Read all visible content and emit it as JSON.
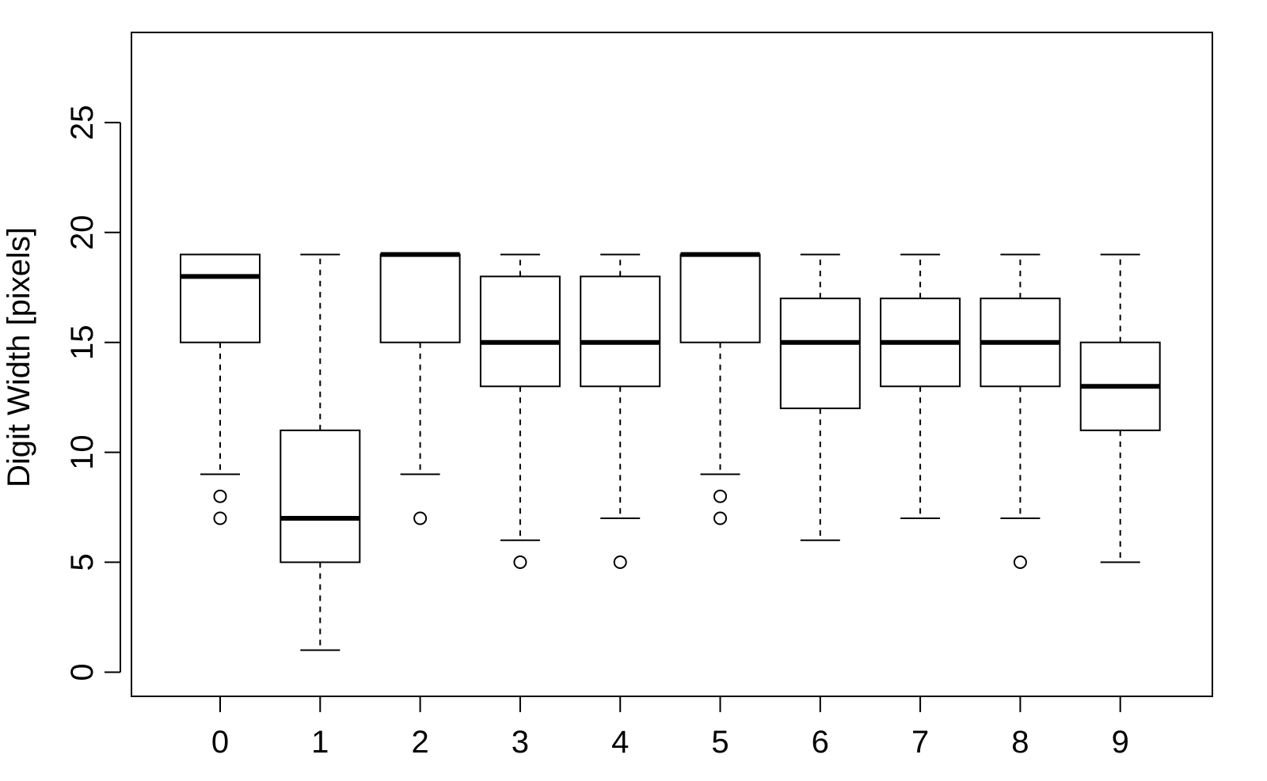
{
  "chart_data": {
    "type": "box",
    "title": "",
    "xlabel": "",
    "ylabel": "Digit Width [pixels]",
    "ylim": [
      -1.1,
      29.1
    ],
    "yticks": [
      0,
      5,
      10,
      15,
      20,
      25
    ],
    "grid": false,
    "legend": "none",
    "categories": [
      "0",
      "1",
      "2",
      "3",
      "4",
      "5",
      "6",
      "7",
      "8",
      "9"
    ],
    "boxes": [
      {
        "category": "0",
        "whisker_low": 9,
        "q1": 15,
        "median": 18,
        "q3": 19,
        "whisker_high": 19,
        "outliers": [
          7,
          8
        ]
      },
      {
        "category": "1",
        "whisker_low": 1,
        "q1": 5,
        "median": 7,
        "q3": 11,
        "whisker_high": 19,
        "outliers": []
      },
      {
        "category": "2",
        "whisker_low": 9,
        "q1": 15,
        "median": 19,
        "q3": 19,
        "whisker_high": 19,
        "outliers": [
          7
        ]
      },
      {
        "category": "3",
        "whisker_low": 6,
        "q1": 13,
        "median": 15,
        "q3": 18,
        "whisker_high": 19,
        "outliers": [
          5
        ]
      },
      {
        "category": "4",
        "whisker_low": 7,
        "q1": 13,
        "median": 15,
        "q3": 18,
        "whisker_high": 19,
        "outliers": [
          5
        ]
      },
      {
        "category": "5",
        "whisker_low": 9,
        "q1": 15,
        "median": 19,
        "q3": 19,
        "whisker_high": 19,
        "outliers": [
          7,
          8
        ]
      },
      {
        "category": "6",
        "whisker_low": 6,
        "q1": 12,
        "median": 15,
        "q3": 17,
        "whisker_high": 19,
        "outliers": []
      },
      {
        "category": "7",
        "whisker_low": 7,
        "q1": 13,
        "median": 15,
        "q3": 17,
        "whisker_high": 19,
        "outliers": []
      },
      {
        "category": "8",
        "whisker_low": 7,
        "q1": 13,
        "median": 15,
        "q3": 17,
        "whisker_high": 19,
        "outliers": [
          5
        ]
      },
      {
        "category": "9",
        "whisker_low": 5,
        "q1": 11,
        "median": 13,
        "q3": 15,
        "whisker_high": 19,
        "outliers": []
      }
    ],
    "colors": {
      "box_fill": "#ffffff",
      "stroke": "#000000"
    }
  }
}
